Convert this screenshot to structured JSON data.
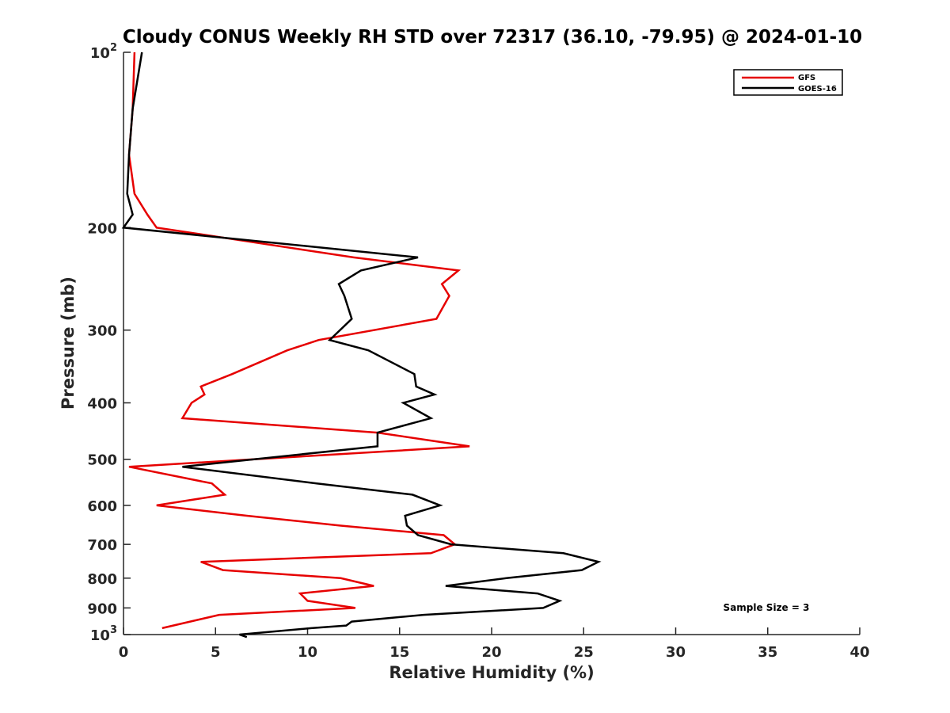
{
  "chart_data": {
    "type": "line",
    "title": "Cloudy CONUS Weekly RH STD over 72317 (36.10, -79.95) @ 2024-01-10",
    "xlabel": "Relative Humidity (%)",
    "ylabel": "Pressure (mb)",
    "xlim": [
      0,
      40
    ],
    "ylim": [
      100,
      1000
    ],
    "y_scale": "log",
    "y_reversed": true,
    "grid": false,
    "legend_position": "top-right",
    "x_ticks": [
      "0",
      "5",
      "10",
      "15",
      "20",
      "25",
      "30",
      "35",
      "40"
    ],
    "y_ticks": [
      {
        "value": 100,
        "base": "10",
        "exp": "2"
      },
      {
        "value": 200,
        "label": "200"
      },
      {
        "value": 300,
        "label": "300"
      },
      {
        "value": 400,
        "label": "400"
      },
      {
        "value": 500,
        "label": "500"
      },
      {
        "value": 600,
        "label": "600"
      },
      {
        "value": 700,
        "label": "700"
      },
      {
        "value": 800,
        "label": "800"
      },
      {
        "value": 900,
        "label": "900"
      },
      {
        "value": 1000,
        "base": "10",
        "exp": "3"
      }
    ],
    "annotation": "Sample Size = 3",
    "series": [
      {
        "name": "GFS",
        "color": "#e60000",
        "points": [
          [
            0.6,
            100
          ],
          [
            0.5,
            125
          ],
          [
            0.3,
            150
          ],
          [
            0.6,
            175
          ],
          [
            1.3,
            190
          ],
          [
            1.8,
            200
          ],
          [
            12.5,
            225
          ],
          [
            18.2,
            237
          ],
          [
            17.3,
            250
          ],
          [
            17.7,
            262
          ],
          [
            17.0,
            287
          ],
          [
            10.6,
            312
          ],
          [
            8.9,
            325
          ],
          [
            5.9,
            357
          ],
          [
            4.2,
            375
          ],
          [
            4.4,
            387
          ],
          [
            3.7,
            400
          ],
          [
            3.2,
            425
          ],
          [
            13.8,
            450
          ],
          [
            18.8,
            475
          ],
          [
            0.3,
            515
          ],
          [
            4.8,
            550
          ],
          [
            5.5,
            575
          ],
          [
            1.8,
            600
          ],
          [
            6.7,
            625
          ],
          [
            11.8,
            650
          ],
          [
            17.4,
            675
          ],
          [
            18.0,
            700
          ],
          [
            16.7,
            725
          ],
          [
            4.2,
            750
          ],
          [
            5.4,
            775
          ],
          [
            11.8,
            800
          ],
          [
            13.6,
            825
          ],
          [
            9.6,
            850
          ],
          [
            10.0,
            875
          ],
          [
            12.6,
            900
          ],
          [
            5.2,
            925
          ],
          [
            2.1,
            975
          ]
        ]
      },
      {
        "name": "GOES-16",
        "color": "#000000",
        "points": [
          [
            1.0,
            100
          ],
          [
            0.5,
            125
          ],
          [
            0.3,
            150
          ],
          [
            0.2,
            175
          ],
          [
            0.5,
            190
          ],
          [
            0.0,
            200
          ],
          [
            16.0,
            225
          ],
          [
            12.9,
            237
          ],
          [
            11.7,
            250
          ],
          [
            12.0,
            262
          ],
          [
            12.4,
            287
          ],
          [
            11.2,
            312
          ],
          [
            13.3,
            325
          ],
          [
            15.8,
            357
          ],
          [
            15.9,
            375
          ],
          [
            16.9,
            387
          ],
          [
            15.2,
            400
          ],
          [
            16.7,
            425
          ],
          [
            13.8,
            450
          ],
          [
            13.8,
            475
          ],
          [
            3.2,
            515
          ],
          [
            10.5,
            550
          ],
          [
            15.7,
            575
          ],
          [
            17.2,
            600
          ],
          [
            15.3,
            625
          ],
          [
            15.4,
            650
          ],
          [
            16.0,
            675
          ],
          [
            17.8,
            700
          ],
          [
            23.9,
            725
          ],
          [
            25.8,
            750
          ],
          [
            24.9,
            775
          ],
          [
            20.8,
            800
          ],
          [
            17.5,
            825
          ],
          [
            22.5,
            850
          ],
          [
            23.7,
            875
          ],
          [
            22.8,
            900
          ],
          [
            16.3,
            925
          ],
          [
            12.4,
            950
          ],
          [
            12.1,
            965
          ],
          [
            10.2,
            975
          ],
          [
            6.3,
            1000
          ],
          [
            6.7,
            1010
          ]
        ]
      }
    ]
  }
}
